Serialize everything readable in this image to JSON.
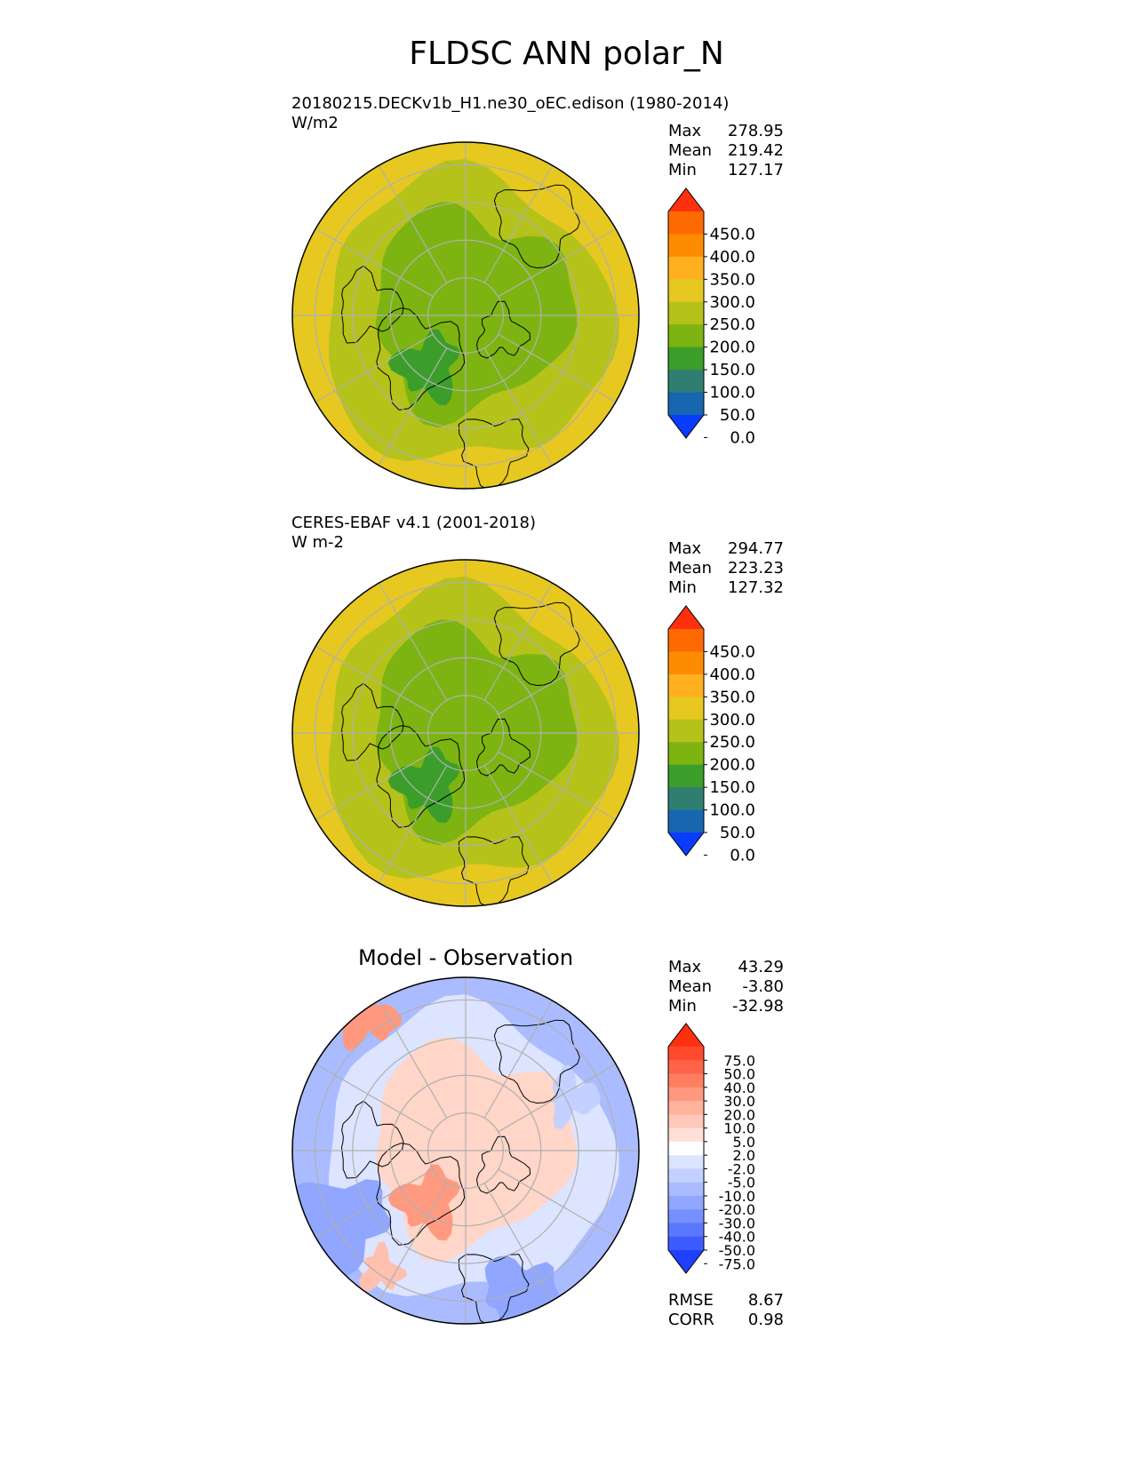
{
  "figure": {
    "title": "FLDSC ANN polar_N"
  },
  "panels": [
    {
      "id": "test",
      "title_line1": "20180215.DECKv1b_H1.ne30_oEC.edison (1980-2014)",
      "title_line2": "W/m2",
      "stats": {
        "max_label": "Max",
        "max": "278.95",
        "mean_label": "Mean",
        "mean": "219.42",
        "min_label": "Min",
        "min": "127.17"
      },
      "colorbar": {
        "labels": [
          "450.0",
          "400.0",
          "350.0",
          "300.0",
          "250.0",
          "200.0",
          "150.0",
          "100.0",
          "50.0",
          "0.0"
        ],
        "colors": [
          "#ff3010",
          "#ff6a00",
          "#ff8c00",
          "#ffb020",
          "#e6c820",
          "#b5c21a",
          "#7db412",
          "#3c9e2a",
          "#2f7f70",
          "#1766b0",
          "#0a3cff"
        ]
      }
    },
    {
      "id": "ref",
      "title_line1": "CERES-EBAF v4.1 (2001-2018)",
      "title_line2": "W m-2",
      "stats": {
        "max_label": "Max",
        "max": "294.77",
        "mean_label": "Mean",
        "mean": "223.23",
        "min_label": "Min",
        "min": "127.32"
      },
      "colorbar": {
        "labels": [
          "450.0",
          "400.0",
          "350.0",
          "300.0",
          "250.0",
          "200.0",
          "150.0",
          "100.0",
          "50.0",
          "0.0"
        ],
        "colors": [
          "#ff3010",
          "#ff6a00",
          "#ff8c00",
          "#ffb020",
          "#e6c820",
          "#b5c21a",
          "#7db412",
          "#3c9e2a",
          "#2f7f70",
          "#1766b0",
          "#0a3cff"
        ]
      }
    },
    {
      "id": "diff",
      "title": "Model - Observation",
      "stats": {
        "max_label": "Max",
        "max": "43.29",
        "mean_label": "Mean",
        "mean": "-3.80",
        "min_label": "Min",
        "min": "-32.98"
      },
      "metrics": {
        "rmse_label": "RMSE",
        "rmse": "8.67",
        "corr_label": "CORR",
        "corr": "0.98"
      },
      "colorbar": {
        "labels": [
          "75.0",
          "50.0",
          "40.0",
          "30.0",
          "20.0",
          "10.0",
          "5.0",
          "2.0",
          "-2.0",
          "-5.0",
          "-10.0",
          "-20.0",
          "-30.0",
          "-40.0",
          "-50.0",
          "-75.0"
        ],
        "colors": [
          "#ff3010",
          "#ff4a30",
          "#ff6448",
          "#ff7e62",
          "#ff987e",
          "#ffb29c",
          "#ffc8b8",
          "#ffe0d6",
          "#ffffff",
          "#dde4ff",
          "#c4d0ff",
          "#aabcff",
          "#90a6ff",
          "#7690ff",
          "#5a78ff",
          "#3c5cff",
          "#1f40ff"
        ]
      }
    }
  ],
  "map": {
    "colors": {
      "test": {
        "outer": "#e6c820",
        "mid": "#b5c21a",
        "inner": "#7db412",
        "deep": "#3c9e2a"
      },
      "ref": {
        "outer": "#e6c820",
        "mid": "#b5c21a",
        "inner": "#7db412",
        "deep": "#3c9e2a"
      },
      "diff": {
        "outer": "#aabcff",
        "mid": "#dde4ff",
        "inner": "#ffd6c8",
        "deep": "#ff9a80"
      },
      "grid": "#b0b0b0",
      "coast": "#000000"
    }
  }
}
